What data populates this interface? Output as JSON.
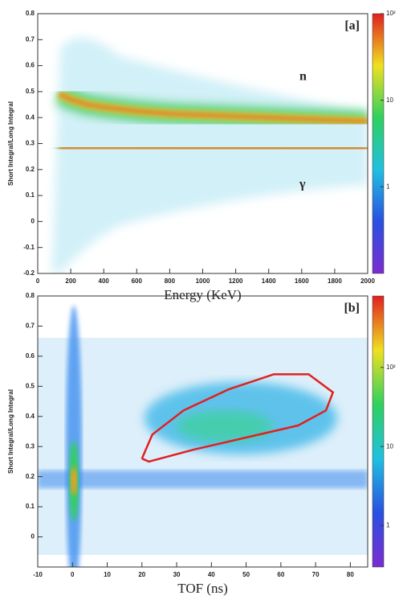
{
  "chart_data": [
    {
      "type": "line",
      "annotation": "[a]",
      "xlabel": "Energy (KeV)",
      "ylabel": "Short Integral/Long Integral",
      "xlim": [
        0,
        2000
      ],
      "ylim": [
        -0.2,
        0.8
      ],
      "xticks": [
        0,
        200,
        400,
        600,
        800,
        1000,
        1200,
        1400,
        1600,
        1800,
        2000
      ],
      "yticks": [
        -0.2,
        -0.1,
        0,
        0.1,
        0.2,
        0.3,
        0.4,
        0.5,
        0.6,
        0.7,
        0.8
      ],
      "zlim": [
        0.1,
        100
      ],
      "zlog": true,
      "zticks": [
        {
          "value": 100,
          "label": "10²"
        },
        10,
        1
      ],
      "x": [
        130,
        200,
        300,
        400,
        600,
        800,
        1000,
        1200,
        1400,
        1600,
        1800,
        2000
      ],
      "series": [
        {
          "name": "n",
          "color": "#e8702a",
          "values": [
            0.49,
            0.47,
            0.45,
            0.44,
            0.425,
            0.415,
            0.41,
            0.405,
            0.4,
            0.395,
            0.39,
            0.385
          ]
        },
        {
          "name": "γ",
          "color": "#e8502a",
          "values": [
            0.28,
            0.285,
            0.285,
            0.285,
            0.285,
            0.283,
            0.282,
            0.282,
            0.281,
            0.28,
            0.28,
            0.28
          ]
        }
      ]
    },
    {
      "type": "line",
      "annotation": "[b]",
      "xlabel": "TOF (ns)",
      "ylabel": "Short Integral/Long Integral",
      "xlim": [
        -10,
        85
      ],
      "ylim": [
        -0.1,
        0.8
      ],
      "xticks": [
        -10,
        0,
        10,
        20,
        30,
        40,
        50,
        60,
        70,
        80
      ],
      "yticks": [
        0,
        0.1,
        0.2,
        0.3,
        0.4,
        0.5,
        0.6,
        0.7,
        0.8
      ],
      "zlim": [
        0.3,
        800
      ],
      "zlog": true,
      "zticks": [
        {
          "value": 100,
          "label": "10²"
        },
        10,
        1
      ],
      "x": [
        20,
        23,
        32,
        45,
        58,
        68,
        75,
        73,
        65,
        50,
        35,
        22,
        20
      ],
      "series": [
        {
          "color": "#e02020",
          "values": [
            0.26,
            0.34,
            0.42,
            0.49,
            0.54,
            0.54,
            0.48,
            0.42,
            0.37,
            0.33,
            0.29,
            0.25,
            0.26
          ]
        }
      ]
    }
  ]
}
